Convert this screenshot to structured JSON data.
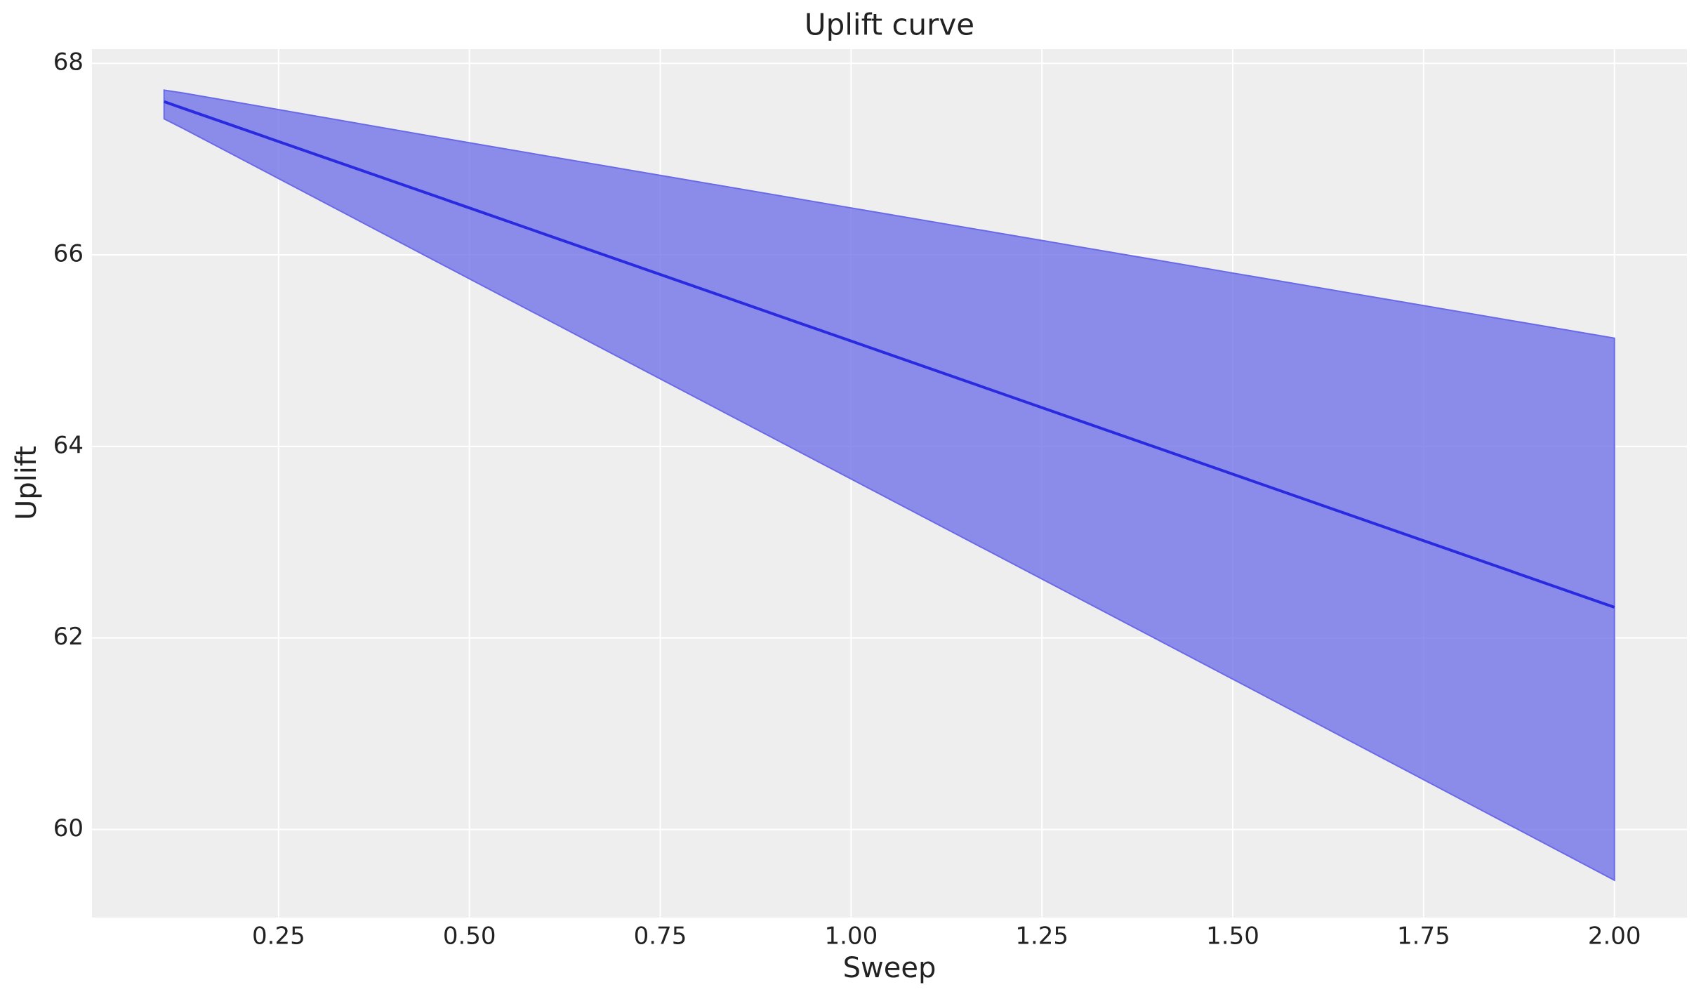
{
  "chart_data": {
    "type": "line_band",
    "title": "Uplift curve",
    "x_label": "Sweep",
    "y_label": "Uplift",
    "x": [
      0.1,
      0.125,
      0.5,
      1.0,
      1.5,
      2.0
    ],
    "values": [
      67.6,
      67.53,
      66.49,
      65.1,
      63.71,
      62.32
    ],
    "band_upper": [
      67.72,
      67.69,
      67.17,
      66.49,
      65.81,
      65.13
    ],
    "band_lower": [
      67.42,
      67.32,
      65.75,
      63.66,
      61.57,
      59.47
    ],
    "color": "#2a2ae0",
    "band_color": "#6a6ae8",
    "xlim": [
      0.0055,
      2.095
    ],
    "ylim": [
      59.08,
      68.148
    ],
    "xticks": [
      {
        "value": 0.25,
        "label": "0.25"
      },
      {
        "value": 0.5,
        "label": "0.50"
      },
      {
        "value": 0.75,
        "label": "0.75"
      },
      {
        "value": 1.0,
        "label": "1.00"
      },
      {
        "value": 1.25,
        "label": "1.25"
      },
      {
        "value": 1.5,
        "label": "1.50"
      },
      {
        "value": 1.75,
        "label": "1.75"
      },
      {
        "value": 2.0,
        "label": "2.00"
      }
    ],
    "yticks": [
      60,
      62,
      64,
      66,
      68
    ],
    "grid": true
  }
}
